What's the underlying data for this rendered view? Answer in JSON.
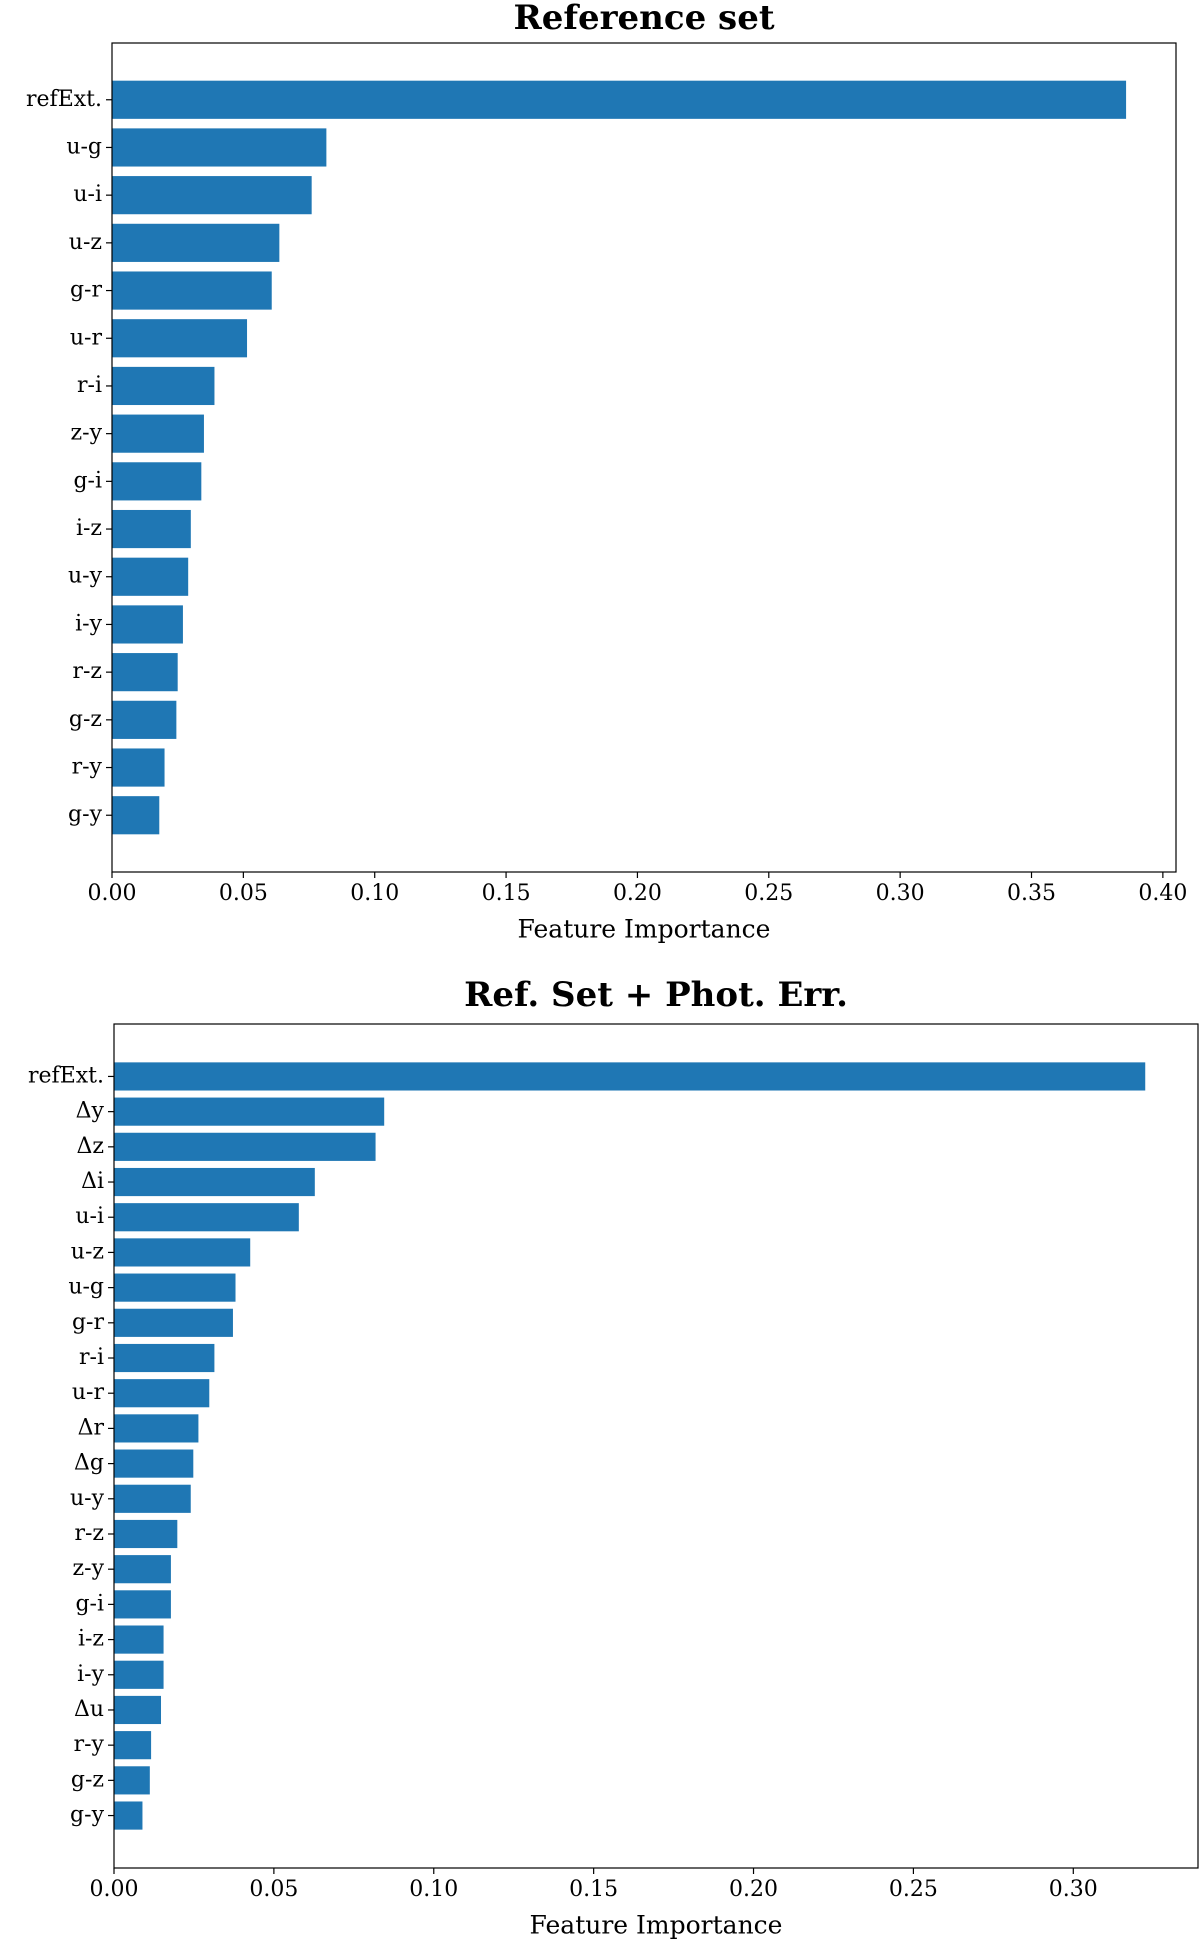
{
  "chart_data": [
    {
      "type": "bar",
      "orientation": "horizontal",
      "title": "Reference set",
      "x_label": "Feature Importance",
      "color": "#1f77b4",
      "categories": [
        "refExt.",
        "u-g",
        "u-i",
        "u-z",
        "g-r",
        "u-r",
        "r-i",
        "z-y",
        "g-i",
        "i-z",
        "u-y",
        "i-y",
        "r-z",
        "g-z",
        "r-y",
        "g-y"
      ],
      "values": [
        0.386,
        0.0816,
        0.076,
        0.0637,
        0.0608,
        0.0514,
        0.039,
        0.035,
        0.034,
        0.03,
        0.029,
        0.027,
        0.025,
        0.0245,
        0.02,
        0.018
      ],
      "xlim": [
        0,
        0.405
      ],
      "xticks": [
        {
          "value": 0,
          "label": "0.00"
        },
        {
          "value": 0.05,
          "label": "0.05"
        },
        {
          "value": 0.1,
          "label": "0.10"
        },
        {
          "value": 0.15,
          "label": "0.15"
        },
        {
          "value": 0.2,
          "label": "0.20"
        },
        {
          "value": 0.25,
          "label": "0.25"
        },
        {
          "value": 0.3,
          "label": "0.30"
        },
        {
          "value": 0.35,
          "label": "0.35"
        },
        {
          "value": 0.4,
          "label": "0.40"
        }
      ]
    },
    {
      "type": "bar",
      "orientation": "horizontal",
      "title": "Ref. Set + Phot. Err.",
      "x_label": "Feature Importance",
      "color": "#1f77b4",
      "categories": [
        "refExt.",
        "Δy",
        "Δz",
        "Δi",
        "u-i",
        "u-z",
        "u-g",
        "g-r",
        "r-i",
        "u-r",
        "Δr",
        "Δg",
        "u-y",
        "r-z",
        "z-y",
        "g-i",
        "i-z",
        "i-y",
        "Δu",
        "r-y",
        "g-z",
        "g-y"
      ],
      "values": [
        0.3225,
        0.0845,
        0.0818,
        0.0628,
        0.0578,
        0.0426,
        0.038,
        0.0372,
        0.0314,
        0.0298,
        0.0264,
        0.0248,
        0.024,
        0.0198,
        0.0178,
        0.0178,
        0.0155,
        0.0155,
        0.0147,
        0.0116,
        0.0112,
        0.0089
      ],
      "xlim": [
        0,
        0.339
      ],
      "xticks": [
        {
          "value": 0,
          "label": "0.00"
        },
        {
          "value": 0.05,
          "label": "0.05"
        },
        {
          "value": 0.1,
          "label": "0.10"
        },
        {
          "value": 0.15,
          "label": "0.15"
        },
        {
          "value": 0.2,
          "label": "0.20"
        },
        {
          "value": 0.25,
          "label": "0.25"
        },
        {
          "value": 0.3,
          "label": "0.30"
        }
      ]
    }
  ]
}
